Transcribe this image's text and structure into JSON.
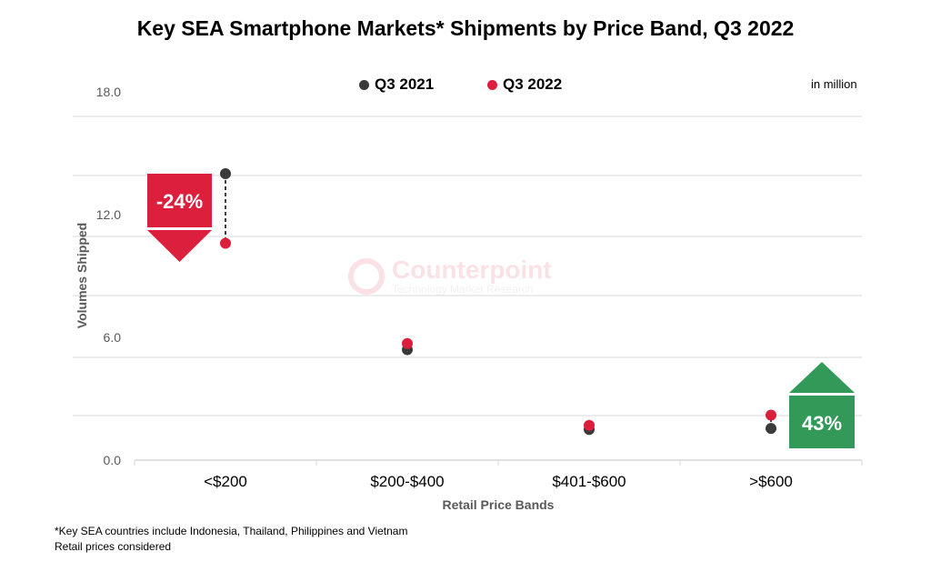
{
  "chart_data": {
    "type": "scatter",
    "title": "Key SEA Smartphone Markets* Shipments by Price Band, Q3 2022",
    "xlabel": "Retail Price Bands",
    "ylabel": "Volumes Shipped",
    "unit_note": "in million",
    "categories": [
      "<$200",
      "$200-$400",
      "$401-$600",
      ">$600"
    ],
    "yticks": [
      "0.0",
      "6.0",
      "12.0",
      "18.0"
    ],
    "ylim": [
      0,
      18
    ],
    "grid": true,
    "legend_position": "top",
    "series": [
      {
        "name": "Q3 2021",
        "color": "#3a3a3a",
        "values": [
          14.0,
          5.4,
          1.5,
          1.55
        ]
      },
      {
        "name": "Q3 2022",
        "color": "#dc1f3c",
        "values": [
          10.6,
          5.7,
          1.7,
          2.2
        ]
      }
    ],
    "annotations": [
      {
        "text": "-24%",
        "category": "<$200",
        "direction": "down",
        "color": "#dc1f3c"
      },
      {
        "text": "43%",
        "category": ">$600",
        "direction": "up",
        "color": "#339958"
      }
    ]
  },
  "watermark": {
    "name": "Counterpoint",
    "tagline": "Technology Market Research"
  },
  "footnotes": [
    "*Key SEA countries include Indonesia, Thailand, Philippines and Vietnam",
    "Retail prices considered"
  ]
}
